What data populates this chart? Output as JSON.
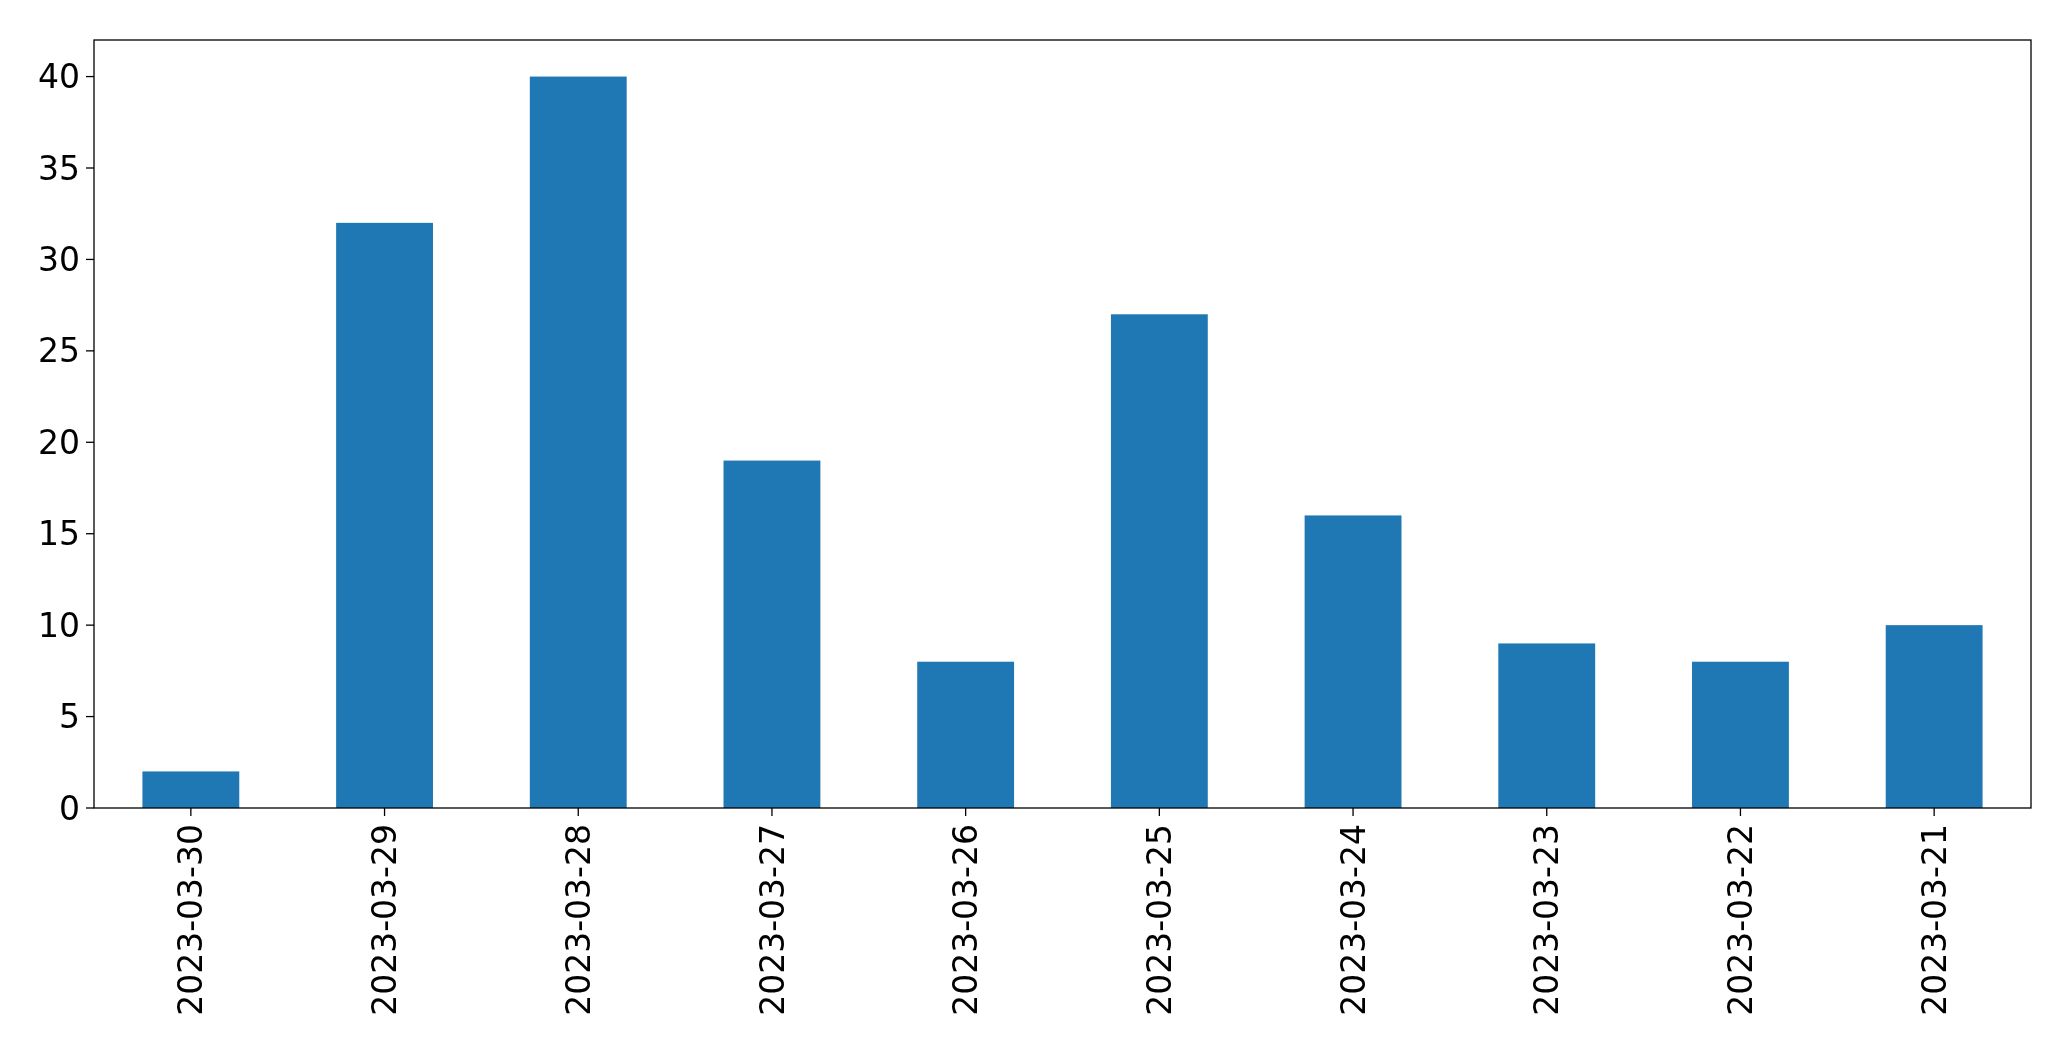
{
  "chart_data": {
    "type": "bar",
    "categories": [
      "2023-03-30",
      "2023-03-29",
      "2023-03-28",
      "2023-03-27",
      "2023-03-26",
      "2023-03-25",
      "2023-03-24",
      "2023-03-23",
      "2023-03-22",
      "2023-03-21"
    ],
    "values": [
      2,
      32,
      40,
      19,
      8,
      27,
      16,
      9,
      8,
      10
    ],
    "color": "#1f77b4",
    "ylim": [
      0,
      42
    ],
    "yticks": [
      0,
      5,
      10,
      15,
      20,
      25,
      30,
      35,
      40
    ],
    "grid": false
  }
}
